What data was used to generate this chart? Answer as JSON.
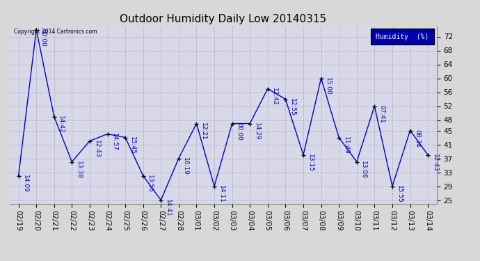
{
  "title": "Outdoor Humidity Daily Low 20140315",
  "legend_label": "Humidity  (%)",
  "copyright_text": "Copyright 2014 Cartronics.com",
  "background_color": "#d8d8d8",
  "plot_bg_color": "#d8d8e8",
  "line_color": "#0000cc",
  "marker_color": "#000000",
  "legend_bg": "#0000aa",
  "legend_fg": "#ffffff",
  "dates": [
    "02/19",
    "02/20",
    "02/21",
    "02/22",
    "02/23",
    "02/24",
    "02/25",
    "02/26",
    "02/27",
    "02/28",
    "03/01",
    "03/02",
    "03/03",
    "03/04",
    "03/05",
    "03/06",
    "03/07",
    "03/08",
    "03/09",
    "03/10",
    "03/11",
    "03/12",
    "03/13",
    "03/14"
  ],
  "values": [
    32,
    74,
    49,
    36,
    42,
    44,
    43,
    32,
    25,
    37,
    47,
    29,
    47,
    47,
    57,
    54,
    38,
    60,
    43,
    36,
    52,
    29,
    45,
    38
  ],
  "point_labels": [
    "14:09",
    "00:00",
    "14:42",
    "13:38",
    "12:43",
    "14:57",
    "15:45",
    "13:56",
    "14:41",
    "16:19",
    "12:21",
    "14:11",
    "00:00",
    "14:29",
    "12:42",
    "12:55",
    "13:15",
    "15:00",
    "11:49",
    "13:06",
    "07:41",
    "15:55",
    "08:34",
    "12:43"
  ],
  "ylim": [
    24,
    75
  ],
  "yticks": [
    25,
    29,
    33,
    37,
    41,
    45,
    48,
    52,
    56,
    60,
    64,
    68,
    72
  ],
  "grid_color": "#b0b0c0",
  "title_fontsize": 11,
  "label_fontsize": 6.5,
  "tick_fontsize": 7.5
}
